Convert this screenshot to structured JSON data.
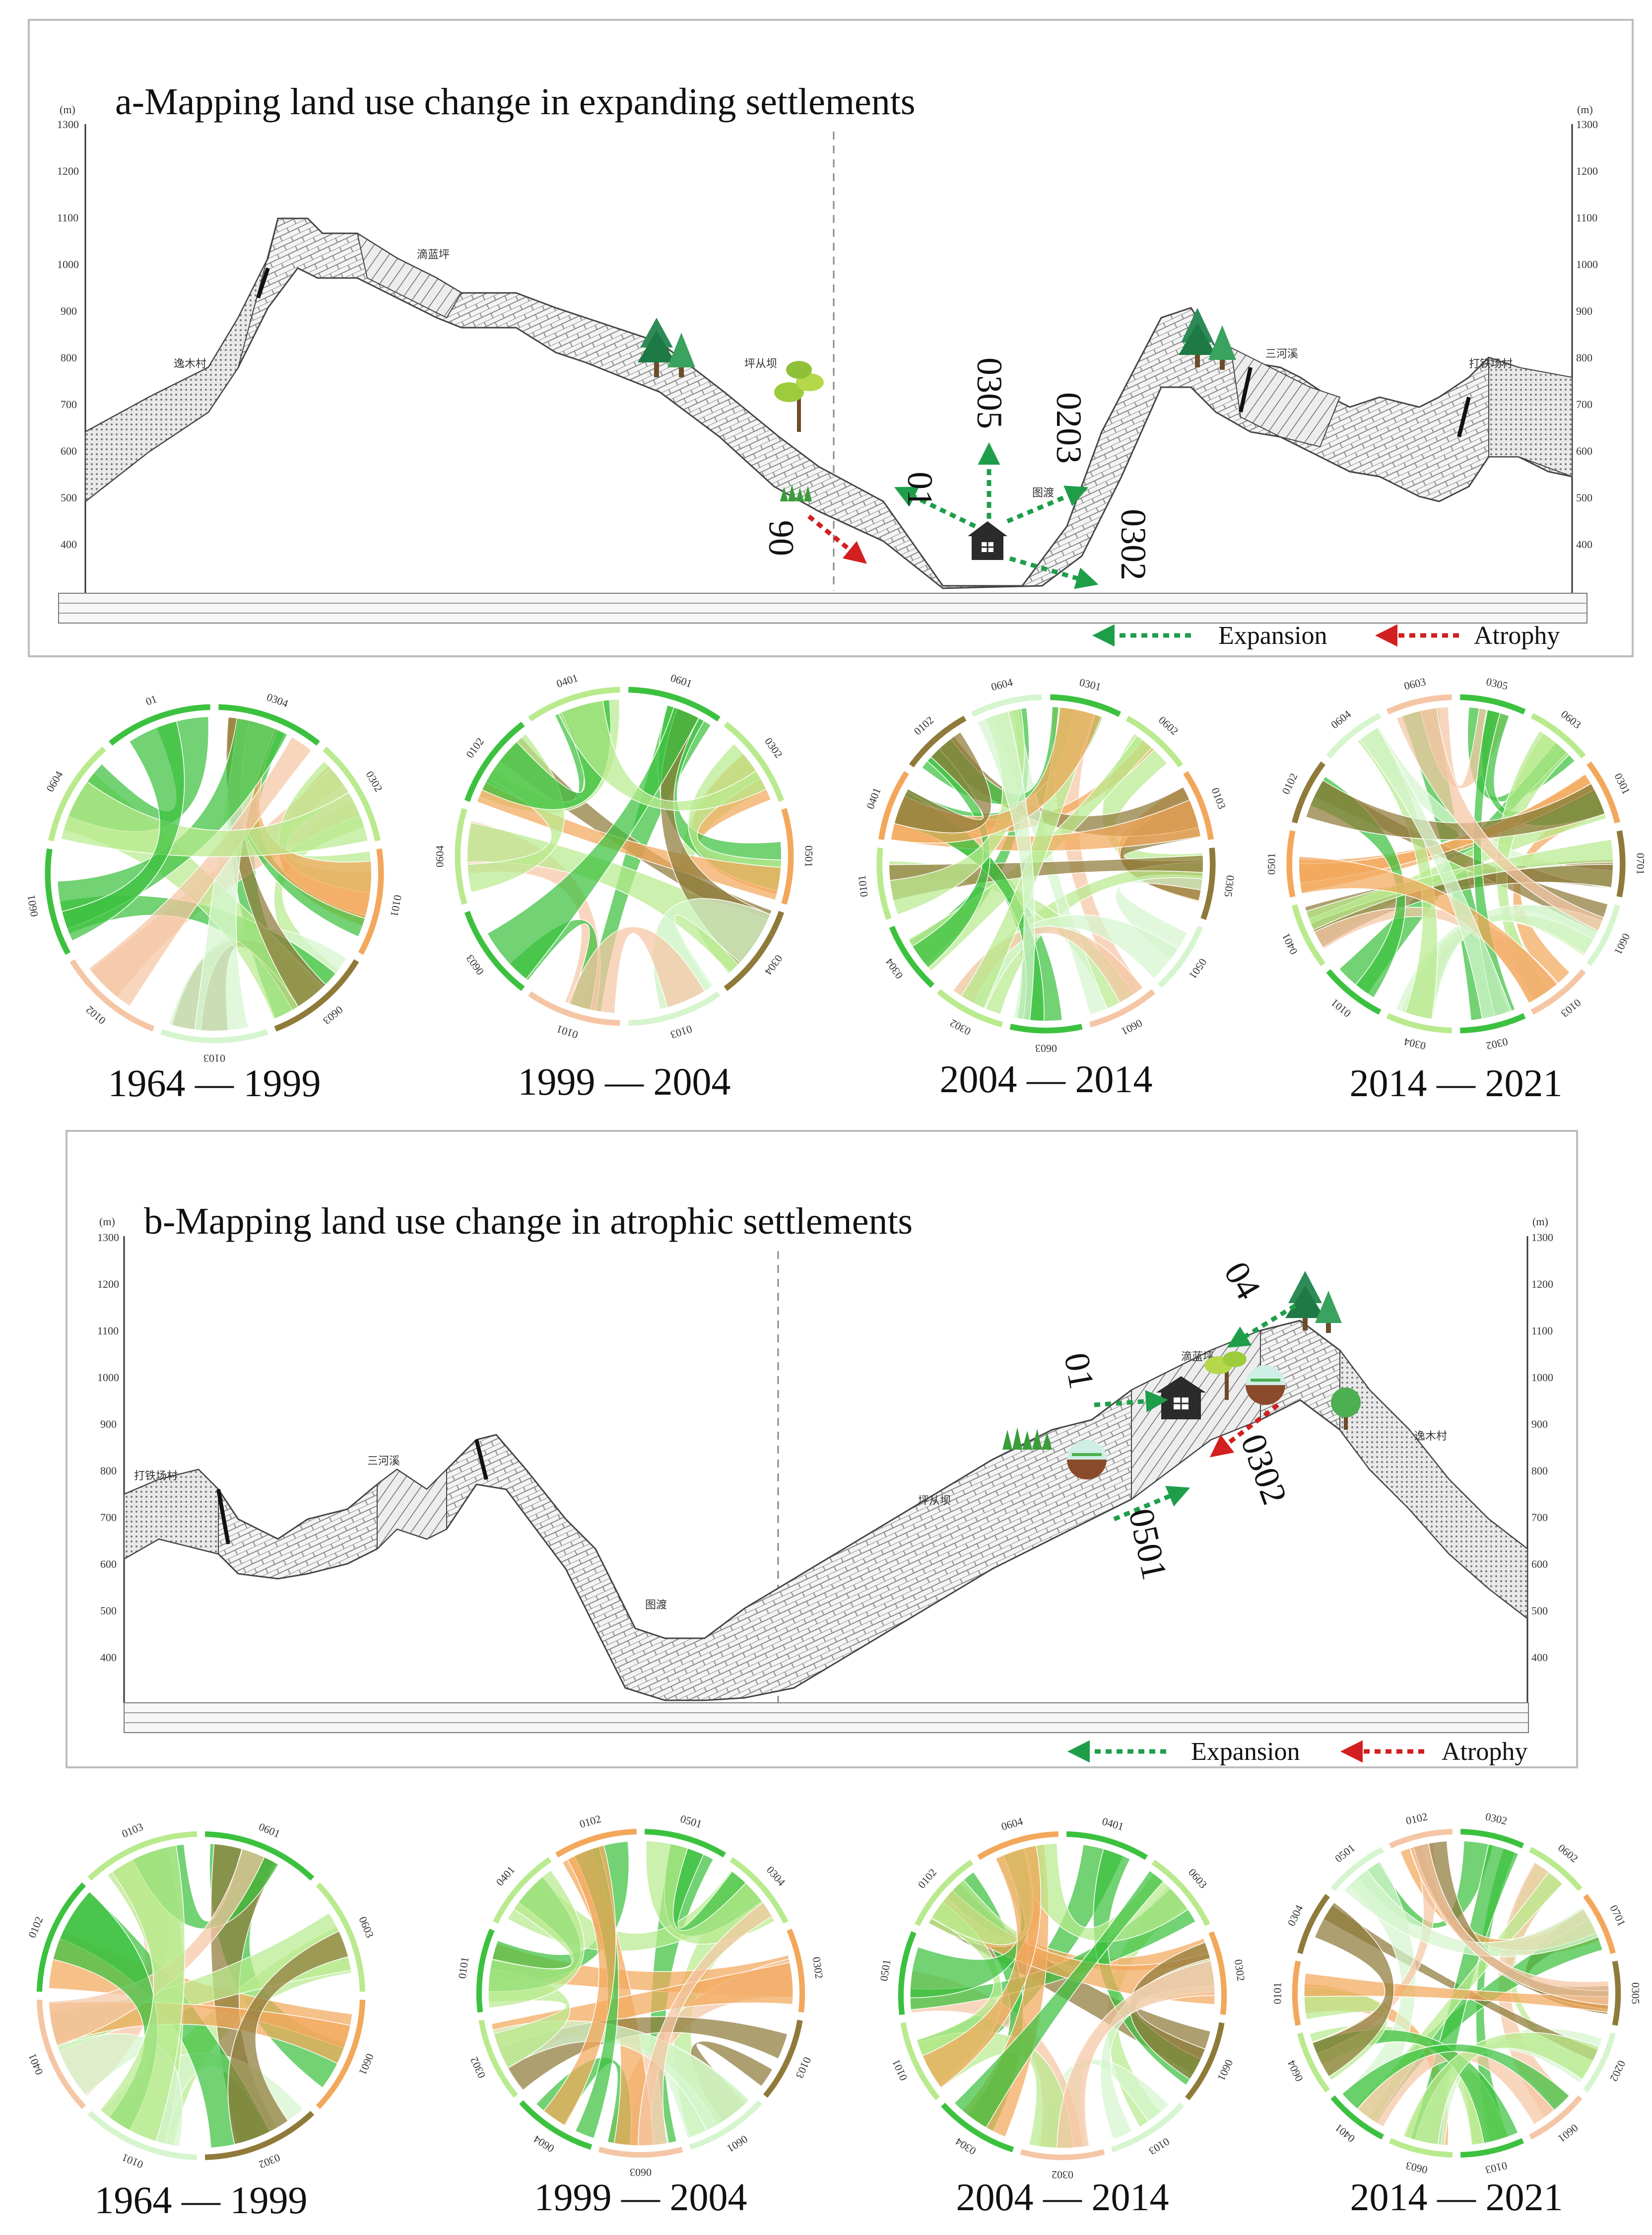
{
  "panel_a": {
    "title": "a-Mapping land use change in expanding settlements",
    "axis_unit": "(m)",
    "y_ticks": [
      "1300",
      "1200",
      "1100",
      "1000",
      "900",
      "800",
      "700",
      "600",
      "500",
      "400"
    ],
    "place_labels": [
      "逸木村",
      "滴蓝坪",
      "坪从坝",
      "图渡",
      "三河溪",
      "打铁场村"
    ],
    "arrows": [
      {
        "code": "01",
        "kind": "Expansion"
      },
      {
        "code": "0305",
        "kind": "Expansion"
      },
      {
        "code": "0203",
        "kind": "Expansion"
      },
      {
        "code": "0302",
        "kind": "Expansion"
      },
      {
        "code": "06",
        "kind": "Atrophy"
      }
    ],
    "legend": {
      "expansion": "Expansion",
      "atrophy": "Atrophy"
    }
  },
  "panel_b": {
    "title": "b-Mapping land use change in atrophic settlements",
    "axis_unit": "(m)",
    "y_ticks": [
      "1300",
      "1200",
      "1100",
      "1000",
      "900",
      "800",
      "700",
      "600",
      "500",
      "400"
    ],
    "place_labels": [
      "打铁场村",
      "三河溪",
      "图渡",
      "坪从坝",
      "滴蓝坪",
      "逸木村"
    ],
    "arrows": [
      {
        "code": "04",
        "kind": "Expansion"
      },
      {
        "code": "01",
        "kind": "Expansion"
      },
      {
        "code": "0302",
        "kind": "Atrophy"
      },
      {
        "code": "0501",
        "kind": "Expansion"
      }
    ],
    "legend": {
      "expansion": "Expansion",
      "atrophy": "Atrophy"
    }
  },
  "chord_rows": [
    {
      "row": "a",
      "diagrams": [
        {
          "period": "1964 — 1999",
          "labels": [
            "0304",
            "0302",
            "0101",
            "0603",
            "0103",
            "0102",
            "0601",
            "0604",
            "01"
          ]
        },
        {
          "period": "1999 — 2004",
          "labels": [
            "0601",
            "0302",
            "0501",
            "0304",
            "0103",
            "0101",
            "0603",
            "0604",
            "0102",
            "0401"
          ]
        },
        {
          "period": "2004 — 2014",
          "labels": [
            "0301",
            "0602",
            "0103",
            "0305",
            "0501",
            "0601",
            "0603",
            "0302",
            "0304",
            "0101",
            "0401",
            "0102",
            "0604"
          ]
        },
        {
          "period": "2014 — 2021",
          "labels": [
            "0305",
            "0603",
            "0301",
            "0701",
            "0601",
            "0103",
            "0302",
            "0304",
            "0101",
            "0401",
            "0501",
            "0102",
            "0604",
            "0603"
          ]
        }
      ]
    },
    {
      "row": "b",
      "diagrams": [
        {
          "period": "1964 — 1999",
          "labels": [
            "0601",
            "0603",
            "0601",
            "0302",
            "0101",
            "0401",
            "0102",
            "0103"
          ]
        },
        {
          "period": "1999 — 2004",
          "labels": [
            "0501",
            "0304",
            "0302",
            "0103",
            "0601",
            "0603",
            "0604",
            "0302",
            "0101",
            "0401",
            "0102"
          ]
        },
        {
          "period": "2004 — 2014",
          "labels": [
            "0401",
            "0603",
            "0302",
            "0601",
            "0103",
            "0302",
            "0304",
            "0101",
            "0501",
            "0102",
            "0604"
          ]
        },
        {
          "period": "2014 — 2021",
          "labels": [
            "0302",
            "0602",
            "0701",
            "0305",
            "0202",
            "0601",
            "0103",
            "0603",
            "0401",
            "0604",
            "0101",
            "0304",
            "0501",
            "0102"
          ]
        }
      ]
    }
  ],
  "colors": {
    "expansion": "#1f9e4a",
    "atrophy": "#d21f1f",
    "green": "#3cc13f",
    "light_green": "#b9ea8e",
    "pale_green": "#d6f5cf",
    "orange": "#f3a75b",
    "olive": "#8f7a3a",
    "salmon": "#f5c6a5",
    "terrain_fill": "#e4e4e4",
    "terrain_stroke": "#444444"
  }
}
